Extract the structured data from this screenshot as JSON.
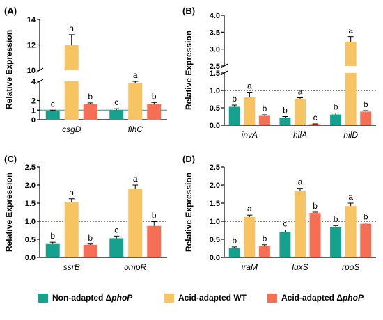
{
  "legend": {
    "items": [
      {
        "label": "Non-adapted Δ",
        "italic": "phoP",
        "color": "#16A08E"
      },
      {
        "label": "Acid-adapted WT",
        "italic": "",
        "color": "#F7C464"
      },
      {
        "label": "Acid-adapted Δ",
        "italic": "phoP",
        "color": "#F56F55"
      }
    ]
  },
  "chart_data": [
    {
      "panel": "(A)",
      "type": "bar",
      "ylabel": "Relative Expression",
      "categories": [
        "csgD",
        "flhC"
      ],
      "series": [
        {
          "name": "Non-adapted ΔphoP",
          "values": [
            0.9,
            1.0
          ],
          "errors": [
            0.1,
            0.15
          ],
          "letters": [
            "c",
            "c"
          ]
        },
        {
          "name": "Acid-adapted WT",
          "values": [
            12.0,
            3.8
          ],
          "errors": [
            0.8,
            0.4
          ],
          "letters": [
            "a",
            "a"
          ]
        },
        {
          "name": "Acid-adapted ΔphoP",
          "values": [
            1.6,
            1.6
          ],
          "errors": [
            0.15,
            0.2
          ],
          "letters": [
            "b",
            "b"
          ]
        }
      ],
      "axis_break": {
        "lower": [
          0,
          4
        ],
        "upper": [
          10,
          14
        ]
      },
      "ticks": [
        0,
        1,
        2,
        4,
        10,
        12,
        14
      ],
      "reference_line": 1.0
    },
    {
      "panel": "(B)",
      "type": "bar",
      "ylabel": "Relative Expression",
      "categories": [
        "invA",
        "hilA",
        "hilD"
      ],
      "series": [
        {
          "name": "Non-adapted ΔphoP",
          "values": [
            0.53,
            0.22,
            0.31
          ],
          "errors": [
            0.05,
            0.03,
            0.04
          ],
          "letters": [
            "b",
            "b",
            "b"
          ]
        },
        {
          "name": "Acid-adapted WT",
          "values": [
            0.8,
            0.76,
            3.22
          ],
          "errors": [
            0.15,
            0.03,
            0.15
          ],
          "letters": [
            "a",
            "a",
            "a"
          ]
        },
        {
          "name": "Acid-adapted ΔphoP",
          "values": [
            0.27,
            0.03,
            0.39
          ],
          "errors": [
            0.03,
            0.01,
            0.03
          ],
          "letters": [
            "b",
            "c",
            "b"
          ]
        }
      ],
      "axis_break": {
        "lower": [
          0,
          1.5
        ],
        "upper": [
          2.5,
          4.0
        ]
      },
      "ticks": [
        0.0,
        0.5,
        1.0,
        1.5,
        2.5,
        3.0,
        3.5,
        4.0
      ],
      "reference_line": 1.0
    },
    {
      "panel": "(C)",
      "type": "bar",
      "ylabel": "Relative Expression",
      "categories": [
        "ssrB",
        "ompR"
      ],
      "series": [
        {
          "name": "Non-adapted ΔphoP",
          "values": [
            0.37,
            0.53
          ],
          "errors": [
            0.05,
            0.06
          ],
          "letters": [
            "b",
            "c"
          ]
        },
        {
          "name": "Acid-adapted WT",
          "values": [
            1.52,
            1.9
          ],
          "errors": [
            0.1,
            0.1
          ],
          "letters": [
            "a",
            "a"
          ]
        },
        {
          "name": "Acid-adapted ΔphoP",
          "values": [
            0.35,
            0.87
          ],
          "errors": [
            0.02,
            0.12
          ],
          "letters": [
            "b",
            "b"
          ]
        }
      ],
      "ylim": [
        0,
        2.5
      ],
      "ticks": [
        0.0,
        0.5,
        1.0,
        1.5,
        2.0,
        2.5
      ],
      "reference_line": 1.0
    },
    {
      "panel": "(D)",
      "type": "bar",
      "ylabel": "Relative Expression",
      "categories": [
        "iraM",
        "luxS",
        "rpoS"
      ],
      "series": [
        {
          "name": "Non-adapted ΔphoP",
          "values": [
            0.25,
            0.7,
            0.83
          ],
          "errors": [
            0.04,
            0.06,
            0.05
          ],
          "letters": [
            "b",
            "c",
            "b"
          ]
        },
        {
          "name": "Acid-adapted WT",
          "values": [
            1.12,
            1.83,
            1.42
          ],
          "errors": [
            0.05,
            0.08,
            0.08
          ],
          "letters": [
            "a",
            "a",
            "a"
          ]
        },
        {
          "name": "Acid-adapted ΔphoP",
          "values": [
            0.31,
            1.23,
            0.93
          ],
          "errors": [
            0.04,
            0.02,
            0.02
          ],
          "letters": [
            "b",
            "b",
            "b"
          ]
        }
      ],
      "ylim": [
        0,
        2.5
      ],
      "ticks": [
        0.0,
        0.5,
        1.0,
        1.5,
        2.0,
        2.5
      ],
      "reference_line": 1.0
    }
  ]
}
